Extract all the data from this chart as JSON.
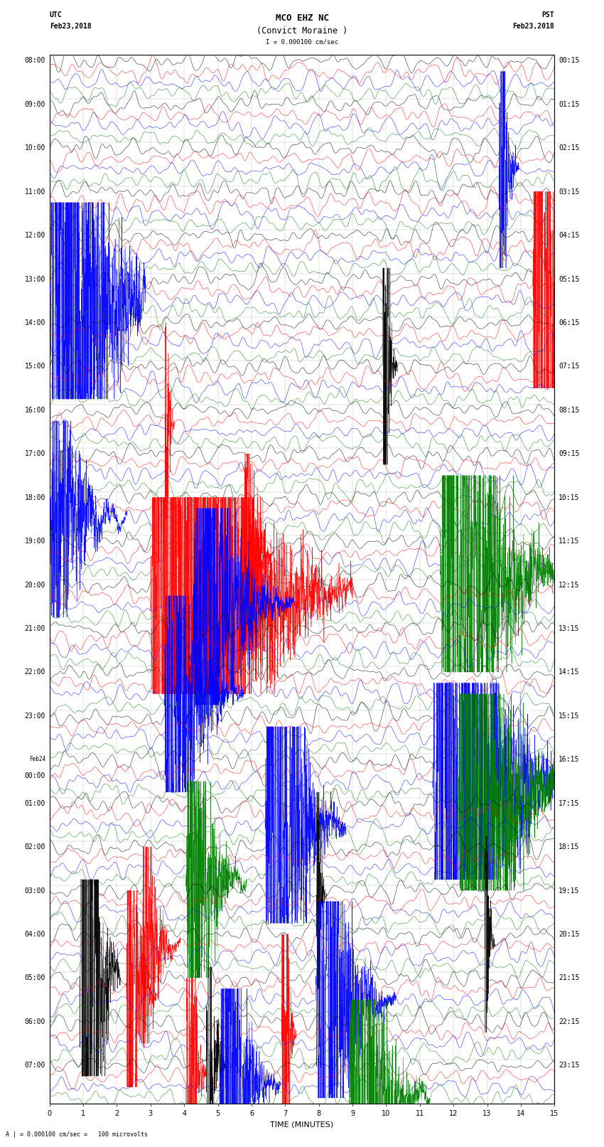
{
  "title_line1": "MCO EHZ NC",
  "title_line2": "(Convict Moraine )",
  "scale_label": "I = 0.000100 cm/sec",
  "footer_label": "A | = 0.000100 cm/sec =   100 microvolts",
  "xlabel": "TIME (MINUTES)",
  "left_times": [
    "08:00",
    "09:00",
    "10:00",
    "11:00",
    "12:00",
    "13:00",
    "14:00",
    "15:00",
    "16:00",
    "17:00",
    "18:00",
    "19:00",
    "20:00",
    "21:00",
    "22:00",
    "23:00",
    "Feb24\n00:00",
    "01:00",
    "02:00",
    "03:00",
    "04:00",
    "05:00",
    "06:00",
    "07:00"
  ],
  "right_times": [
    "00:15",
    "01:15",
    "02:15",
    "03:15",
    "04:15",
    "05:15",
    "06:15",
    "07:15",
    "08:15",
    "09:15",
    "10:15",
    "11:15",
    "12:15",
    "13:15",
    "14:15",
    "15:15",
    "16:15",
    "17:15",
    "18:15",
    "19:15",
    "20:15",
    "21:15",
    "22:15",
    "23:15"
  ],
  "colors": [
    "black",
    "red",
    "blue",
    "green"
  ],
  "num_rows": 24,
  "traces_per_row": 4,
  "minutes": 15,
  "bg_color": "white",
  "grid_color": "#aaaaaa",
  "title_fontsize": 9,
  "label_fontsize": 8,
  "tick_fontsize": 7
}
